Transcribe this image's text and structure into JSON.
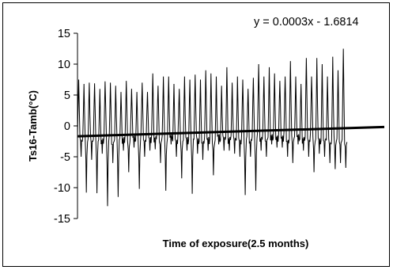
{
  "chart_data": {
    "type": "line",
    "title": "",
    "xlabel": "Time of exposure(2.5 months)",
    "ylabel": "Ts16-Tamb(°C)",
    "ylim": [
      -15,
      15
    ],
    "yticks": [
      -15,
      -10,
      -5,
      0,
      5,
      10,
      15
    ],
    "xlim": [
      0,
      5000
    ],
    "grid": false,
    "legend": "none",
    "annotation": "y = 0.0003x - 1.6814",
    "trendline": {
      "slope": 0.0003,
      "intercept": -1.6814
    },
    "series_color": "#000000",
    "series": [
      {
        "cycles": [
          [
            7.5,
            -5.0
          ],
          [
            6.8,
            -10.8
          ],
          [
            7.0,
            -5.5
          ],
          [
            6.9,
            -10.9
          ],
          [
            6.0,
            -4.5
          ],
          [
            7.2,
            -13.0
          ],
          [
            7.0,
            -6.0
          ],
          [
            6.5,
            -11.5
          ],
          [
            5.5,
            -4.0
          ],
          [
            7.3,
            -7.5
          ],
          [
            6.0,
            -3.5
          ],
          [
            5.5,
            -10.2
          ],
          [
            7.0,
            -5.0
          ],
          [
            5.5,
            -4.0
          ],
          [
            8.5,
            -3.8
          ],
          [
            6.5,
            -6.0
          ],
          [
            8.0,
            -10.5
          ],
          [
            8.0,
            -3.0
          ],
          [
            6.8,
            -5.0
          ],
          [
            6.0,
            -8.5
          ],
          [
            8.0,
            -4.0
          ],
          [
            7.5,
            -11.0
          ],
          [
            8.3,
            -4.5
          ],
          [
            7.5,
            -5.5
          ],
          [
            9.0,
            -4.0
          ],
          [
            8.5,
            -8.0
          ],
          [
            8.0,
            -3.0
          ],
          [
            6.5,
            -4.0
          ],
          [
            9.5,
            -4.0
          ],
          [
            7.0,
            -4.5
          ],
          [
            8.0,
            -5.0
          ],
          [
            7.5,
            -11.2
          ],
          [
            6.0,
            -5.0
          ],
          [
            7.8,
            -10.5
          ],
          [
            10.0,
            -4.0
          ],
          [
            8.0,
            -5.0
          ],
          [
            9.5,
            -3.0
          ],
          [
            8.5,
            -3.5
          ],
          [
            7.3,
            -3.5
          ],
          [
            8.0,
            -5.0
          ],
          [
            10.5,
            -6.0
          ],
          [
            8.0,
            -3.0
          ],
          [
            6.8,
            -4.0
          ],
          [
            11.0,
            -5.0
          ],
          [
            8.0,
            -7.5
          ],
          [
            11.0,
            -4.5
          ],
          [
            10.0,
            -5.0
          ],
          [
            8.0,
            -6.0
          ],
          [
            11.2,
            -7.0
          ],
          [
            9.0,
            -6.0
          ],
          [
            12.5,
            -6.8
          ]
        ]
      }
    ]
  }
}
